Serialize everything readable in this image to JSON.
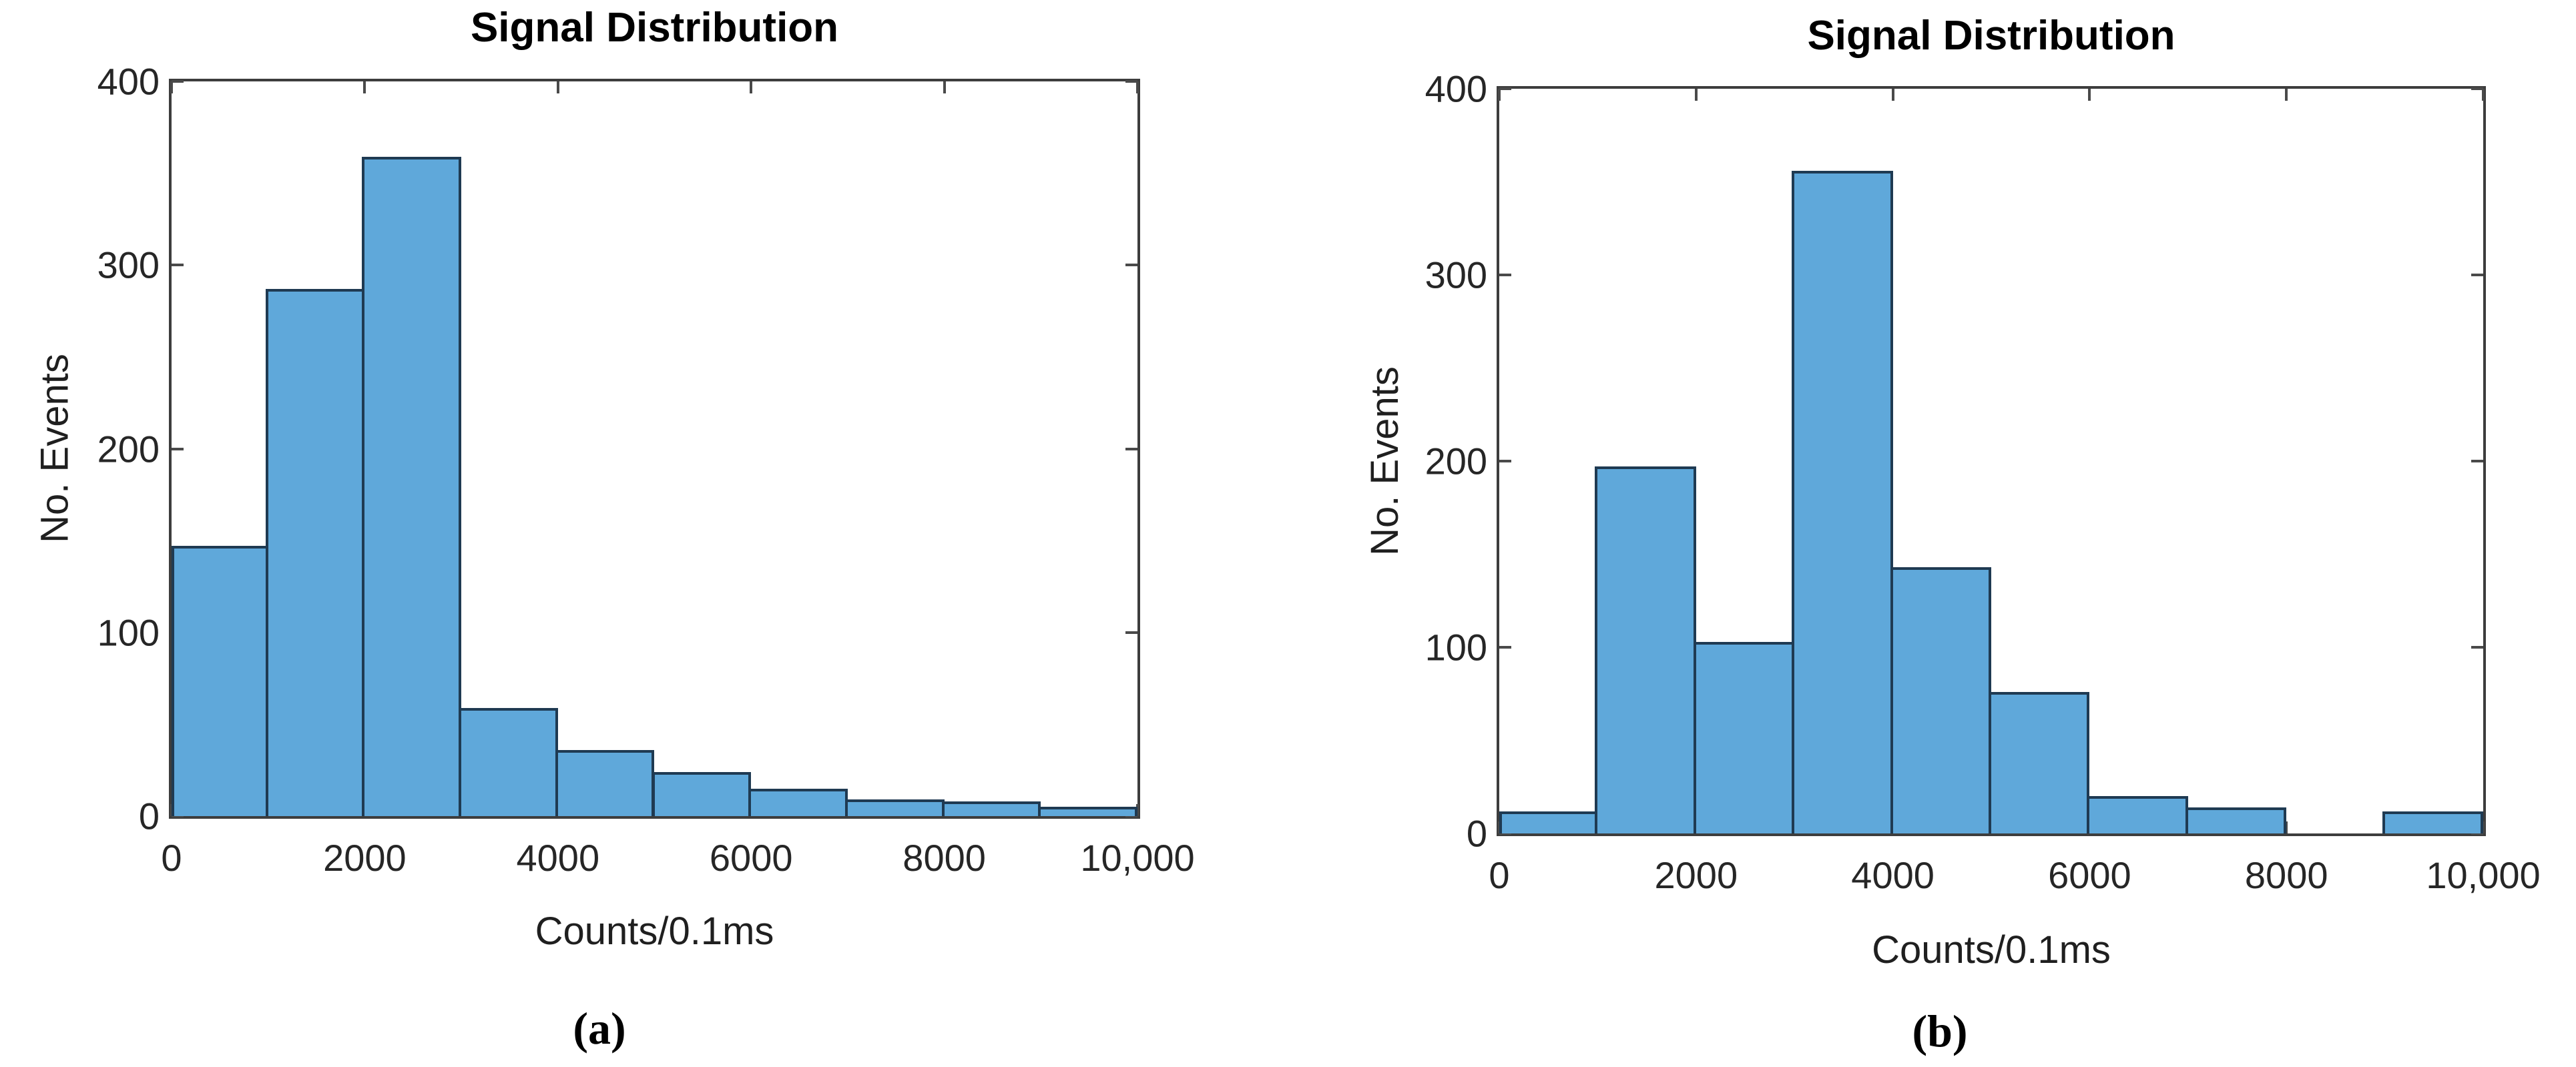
{
  "figure": {
    "background": "#ffffff",
    "axis_color": "#3d3d3d",
    "tick_color": "#4a4a4a",
    "text_color": "#1f1f1f",
    "bar_fill": "#5fa8da",
    "bar_edge": "#1f3a52"
  },
  "chart_data": [
    {
      "type": "bar",
      "panel": "a",
      "title": "Signal Distribution",
      "xlabel": "Counts/0.1ms",
      "ylabel": "No. Events",
      "caption": "(a)",
      "bin_edges": [
        0,
        1000,
        2000,
        3000,
        4000,
        5000,
        6000,
        7000,
        8000,
        9000,
        10000
      ],
      "values": [
        147,
        287,
        359,
        59,
        36,
        24,
        15,
        9,
        8,
        5
      ],
      "xlim": [
        0,
        10000
      ],
      "ylim": [
        0,
        400
      ],
      "xticks": {
        "positions": [
          0,
          2000,
          4000,
          6000,
          8000,
          10000
        ],
        "labels": [
          "0",
          "2000",
          "4000",
          "6000",
          "8000",
          "10,000"
        ]
      },
      "yticks": {
        "positions": [
          0,
          100,
          200,
          300,
          400
        ],
        "labels": [
          "0",
          "100",
          "200",
          "300",
          "400"
        ]
      },
      "grid": false,
      "legend": null,
      "bar_fill": "#5fa8da",
      "bar_edge": "#1f3a52"
    },
    {
      "type": "bar",
      "panel": "b",
      "title": "Signal Distribution",
      "xlabel": "Counts/0.1ms",
      "ylabel": "No. Events",
      "caption": "(b)",
      "bin_edges": [
        0,
        1000,
        2000,
        3000,
        4000,
        5000,
        6000,
        7000,
        8000,
        9000,
        10000
      ],
      "values": [
        12,
        197,
        103,
        356,
        143,
        76,
        20,
        14,
        0,
        12
      ],
      "xlim": [
        0,
        10000
      ],
      "ylim": [
        0,
        400
      ],
      "xticks": {
        "positions": [
          0,
          2000,
          4000,
          6000,
          8000,
          10000
        ],
        "labels": [
          "0",
          "2000",
          "4000",
          "6000",
          "8000",
          "10,000"
        ]
      },
      "yticks": {
        "positions": [
          0,
          100,
          200,
          300,
          400
        ],
        "labels": [
          "0",
          "100",
          "200",
          "300",
          "400"
        ]
      },
      "grid": false,
      "legend": null,
      "bar_fill": "#5fa8da",
      "bar_edge": "#1f3a52"
    }
  ]
}
